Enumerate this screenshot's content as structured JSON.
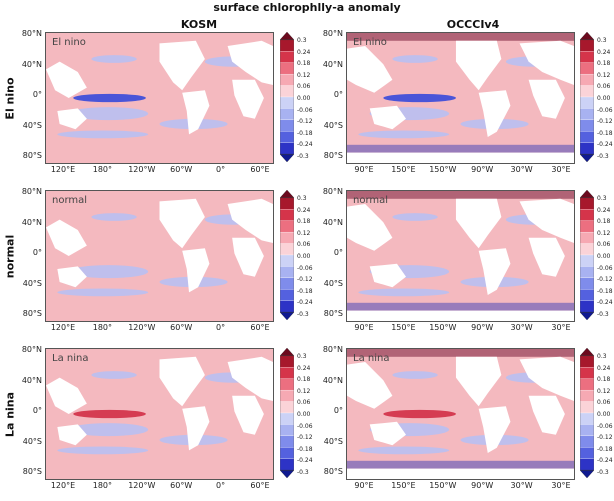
{
  "figure": {
    "title": "surface chlorophlly-a anomaly",
    "columns": [
      {
        "id": "kosm",
        "title": "KOSM",
        "lon_ticks": [
          "120°E",
          "180°",
          "120°W",
          "60°W",
          "0°",
          "60°E"
        ]
      },
      {
        "id": "occci",
        "title": "OCCCIv4",
        "lon_ticks": [
          "90°E",
          "150°E",
          "150°W",
          "90°W",
          "30°W",
          "30°E"
        ]
      }
    ],
    "rows": [
      {
        "id": "elnino",
        "label": "El nino",
        "panel_label": "El nino"
      },
      {
        "id": "normal",
        "label": "normal",
        "panel_label": "normal"
      },
      {
        "id": "lanina",
        "label": "La nina",
        "panel_label": "La nina"
      }
    ],
    "lat_ticks": [
      "80°N",
      "40°N",
      "0°",
      "40°S",
      "80°S"
    ],
    "colorbar": {
      "ticks": [
        "0.3",
        "0.24",
        "0.18",
        "0.12",
        "0.06",
        "0.00",
        "-0.06",
        "-0.12",
        "-0.18",
        "-0.24",
        "-0.3"
      ],
      "colors": [
        "#6b0a1e",
        "#a7182c",
        "#d5344a",
        "#ec6f80",
        "#f6a9b3",
        "#fbd3d8",
        "#ccd2f6",
        "#a8b2f1",
        "#7f8ceb",
        "#5461df",
        "#2d33c6",
        "#101a90"
      ]
    }
  }
}
